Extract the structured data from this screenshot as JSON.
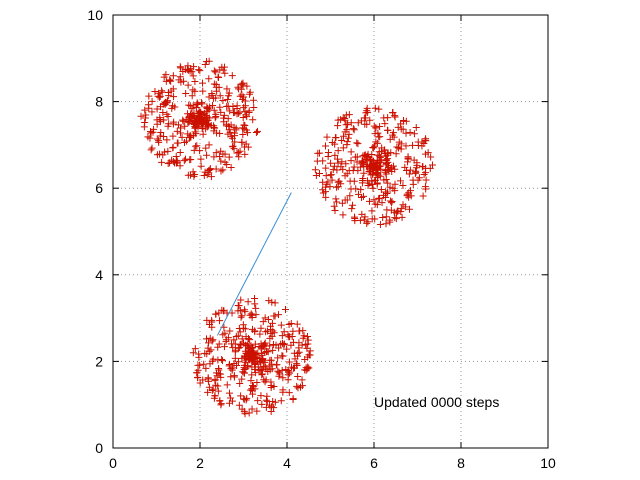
{
  "chart_data": {
    "type": "scatter",
    "title": "",
    "xlabel": "",
    "ylabel": "",
    "xlim": [
      0,
      10
    ],
    "ylim": [
      0,
      10
    ],
    "xticks": [
      "0",
      "2",
      "4",
      "6",
      "8",
      "10"
    ],
    "yticks": [
      "0",
      "2",
      "4",
      "6",
      "8",
      "10"
    ],
    "grid": true,
    "legend": "none",
    "annotation": "Updated 0000 steps",
    "colors": {
      "points": "#cc1100",
      "line": "#3a8fd6",
      "grid": "#999999",
      "axes": "#000000"
    },
    "clusters": [
      {
        "center": [
          2.0,
          7.6
        ],
        "spread": 0.85,
        "count": 420
      },
      {
        "center": [
          6.0,
          6.5
        ],
        "spread": 0.85,
        "count": 400
      },
      {
        "center": [
          3.2,
          2.1
        ],
        "spread": 0.85,
        "count": 420
      }
    ],
    "line_segment": {
      "x": [
        2.4,
        4.1
      ],
      "y": [
        2.6,
        5.9
      ]
    }
  }
}
